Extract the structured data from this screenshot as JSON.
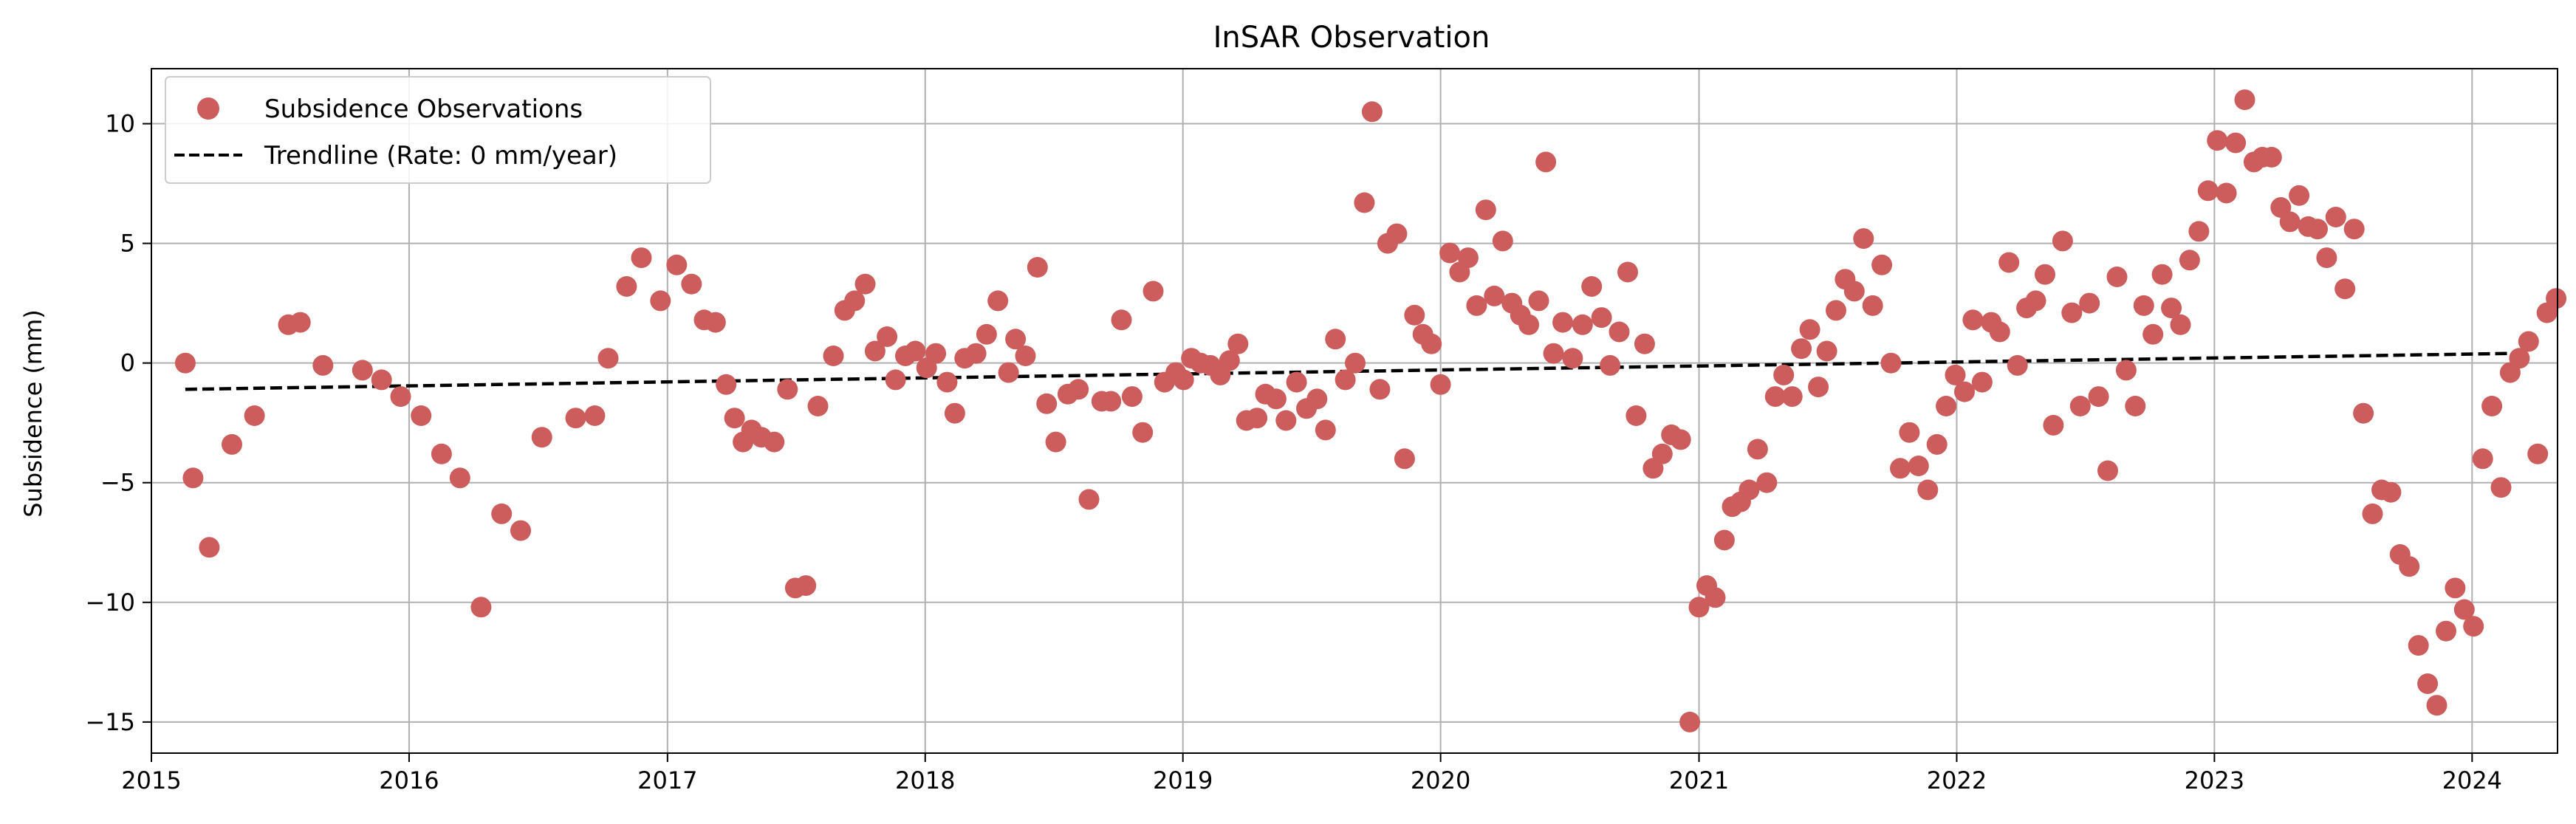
{
  "chart_data": {
    "type": "scatter",
    "title": "InSAR Observation",
    "xlabel": "",
    "ylabel": "Subsidence (mm)",
    "xlim": [
      "2015-01-01",
      "2024-05-01"
    ],
    "ylim": [
      -16.3,
      12.3
    ],
    "x_ticks": [
      "2015",
      "2016",
      "2017",
      "2018",
      "2019",
      "2020",
      "2021",
      "2022",
      "2023",
      "2024"
    ],
    "y_ticks": [
      10,
      5,
      0,
      -5,
      -10,
      -15
    ],
    "y_tick_labels": [
      "10",
      "5",
      "0",
      "−5",
      "−10",
      "−15"
    ],
    "grid": true,
    "legend_position": "top-left",
    "series": [
      {
        "name": "Subsidence Observations",
        "kind": "scatter",
        "color": "#cd5c5c",
        "points": [
          [
            "2015-02-18",
            0.0
          ],
          [
            "2015-03-01",
            -4.8
          ],
          [
            "2015-03-24",
            -7.7
          ],
          [
            "2015-04-25",
            -3.4
          ],
          [
            "2015-05-27",
            -2.2
          ],
          [
            "2015-07-14",
            1.6
          ],
          [
            "2015-07-31",
            1.7
          ],
          [
            "2015-09-01",
            -0.1
          ],
          [
            "2015-10-27",
            -0.3
          ],
          [
            "2015-11-23",
            -0.7
          ],
          [
            "2015-12-20",
            -1.4
          ],
          [
            "2016-01-18",
            -2.2
          ],
          [
            "2016-02-16",
            -3.8
          ],
          [
            "2016-03-13",
            -4.8
          ],
          [
            "2016-04-12",
            -10.2
          ],
          [
            "2016-05-11",
            -6.3
          ],
          [
            "2016-06-07",
            -7.0
          ],
          [
            "2016-07-07",
            -3.1
          ],
          [
            "2016-08-24",
            -2.3
          ],
          [
            "2016-09-20",
            -2.2
          ],
          [
            "2016-10-09",
            0.2
          ],
          [
            "2016-11-04",
            3.2
          ],
          [
            "2016-11-25",
            4.4
          ],
          [
            "2016-12-22",
            2.6
          ],
          [
            "2017-01-14",
            4.1
          ],
          [
            "2017-02-04",
            3.3
          ],
          [
            "2017-02-22",
            1.8
          ],
          [
            "2017-03-10",
            1.7
          ],
          [
            "2017-03-25",
            -0.9
          ],
          [
            "2017-04-06",
            -2.3
          ],
          [
            "2017-04-18",
            -3.3
          ],
          [
            "2017-04-30",
            -2.8
          ],
          [
            "2017-05-14",
            -3.1
          ],
          [
            "2017-06-01",
            -3.3
          ],
          [
            "2017-06-20",
            -1.1
          ],
          [
            "2017-07-01",
            -9.4
          ],
          [
            "2017-07-16",
            -9.3
          ],
          [
            "2017-08-02",
            -1.8
          ],
          [
            "2017-08-24",
            0.3
          ],
          [
            "2017-09-09",
            2.2
          ],
          [
            "2017-09-23",
            2.6
          ],
          [
            "2017-10-08",
            3.3
          ],
          [
            "2017-10-22",
            0.5
          ],
          [
            "2017-11-08",
            1.1
          ],
          [
            "2017-11-20",
            -0.7
          ],
          [
            "2017-12-04",
            0.3
          ],
          [
            "2017-12-18",
            0.5
          ],
          [
            "2018-01-03",
            -0.2
          ],
          [
            "2018-01-16",
            0.4
          ],
          [
            "2018-02-01",
            -0.8
          ],
          [
            "2018-02-12",
            -2.1
          ],
          [
            "2018-02-26",
            0.2
          ],
          [
            "2018-03-14",
            0.4
          ],
          [
            "2018-03-29",
            1.2
          ],
          [
            "2018-04-14",
            2.6
          ],
          [
            "2018-04-29",
            -0.4
          ],
          [
            "2018-05-09",
            1.0
          ],
          [
            "2018-05-23",
            0.3
          ],
          [
            "2018-06-09",
            4.0
          ],
          [
            "2018-06-22",
            -1.7
          ],
          [
            "2018-07-05",
            -3.3
          ],
          [
            "2018-07-22",
            -1.3
          ],
          [
            "2018-08-06",
            -1.1
          ],
          [
            "2018-08-21",
            -5.7
          ],
          [
            "2018-09-08",
            -1.6
          ],
          [
            "2018-09-21",
            -1.6
          ],
          [
            "2018-10-06",
            1.8
          ],
          [
            "2018-10-21",
            -1.4
          ],
          [
            "2018-11-05",
            -2.9
          ],
          [
            "2018-11-20",
            3.0
          ],
          [
            "2018-12-06",
            -0.8
          ],
          [
            "2018-12-22",
            -0.4
          ],
          [
            "2019-01-02",
            -0.7
          ],
          [
            "2019-01-13",
            0.2
          ],
          [
            "2019-01-26",
            0.0
          ],
          [
            "2019-02-09",
            -0.1
          ],
          [
            "2019-02-23",
            -0.5
          ],
          [
            "2019-03-08",
            0.1
          ],
          [
            "2019-03-20",
            0.8
          ],
          [
            "2019-04-01",
            -2.4
          ],
          [
            "2019-04-16",
            -2.3
          ],
          [
            "2019-04-28",
            -1.3
          ],
          [
            "2019-05-13",
            -1.5
          ],
          [
            "2019-05-27",
            -2.4
          ],
          [
            "2019-06-11",
            -0.8
          ],
          [
            "2019-06-25",
            -1.9
          ],
          [
            "2019-07-10",
            -1.5
          ],
          [
            "2019-07-22",
            -2.8
          ],
          [
            "2019-08-05",
            1.0
          ],
          [
            "2019-08-19",
            -0.7
          ],
          [
            "2019-09-02",
            0.0
          ],
          [
            "2019-09-15",
            6.7
          ],
          [
            "2019-09-26",
            10.5
          ],
          [
            "2019-10-07",
            -1.1
          ],
          [
            "2019-10-18",
            5.0
          ],
          [
            "2019-10-31",
            5.4
          ],
          [
            "2019-11-11",
            -4.0
          ],
          [
            "2019-11-25",
            2.0
          ],
          [
            "2019-12-07",
            1.2
          ],
          [
            "2019-12-19",
            0.8
          ],
          [
            "2020-01-01",
            -0.9
          ],
          [
            "2020-01-14",
            4.6
          ],
          [
            "2020-01-28",
            3.8
          ],
          [
            "2020-02-09",
            4.4
          ],
          [
            "2020-02-21",
            2.4
          ],
          [
            "2020-03-05",
            6.4
          ],
          [
            "2020-03-17",
            2.8
          ],
          [
            "2020-03-29",
            5.1
          ],
          [
            "2020-04-11",
            2.5
          ],
          [
            "2020-04-23",
            2.0
          ],
          [
            "2020-05-05",
            1.6
          ],
          [
            "2020-05-19",
            2.6
          ],
          [
            "2020-05-29",
            8.4
          ],
          [
            "2020-06-09",
            0.4
          ],
          [
            "2020-06-22",
            1.7
          ],
          [
            "2020-07-06",
            0.2
          ],
          [
            "2020-07-20",
            1.6
          ],
          [
            "2020-08-02",
            3.2
          ],
          [
            "2020-08-16",
            1.9
          ],
          [
            "2020-08-28",
            -0.1
          ],
          [
            "2020-09-10",
            1.3
          ],
          [
            "2020-09-22",
            3.8
          ],
          [
            "2020-10-04",
            -2.2
          ],
          [
            "2020-10-16",
            0.8
          ],
          [
            "2020-10-28",
            -4.4
          ],
          [
            "2020-11-10",
            -3.8
          ],
          [
            "2020-11-23",
            -3.0
          ],
          [
            "2020-12-06",
            -3.2
          ],
          [
            "2020-12-19",
            -15.0
          ],
          [
            "2021-01-01",
            -10.2
          ],
          [
            "2021-01-12",
            -9.3
          ],
          [
            "2021-01-24",
            -9.8
          ],
          [
            "2021-02-06",
            -7.4
          ],
          [
            "2021-02-17",
            -6.0
          ],
          [
            "2021-03-01",
            -5.8
          ],
          [
            "2021-03-13",
            -5.3
          ],
          [
            "2021-03-25",
            -3.6
          ],
          [
            "2021-04-07",
            -5.0
          ],
          [
            "2021-04-19",
            -1.4
          ],
          [
            "2021-05-01",
            -0.5
          ],
          [
            "2021-05-13",
            -1.4
          ],
          [
            "2021-05-26",
            0.6
          ],
          [
            "2021-06-07",
            1.4
          ],
          [
            "2021-06-19",
            -1.0
          ],
          [
            "2021-07-01",
            0.5
          ],
          [
            "2021-07-14",
            2.2
          ],
          [
            "2021-07-27",
            3.5
          ],
          [
            "2021-08-09",
            3.0
          ],
          [
            "2021-08-22",
            5.2
          ],
          [
            "2021-09-04",
            2.4
          ],
          [
            "2021-09-17",
            4.1
          ],
          [
            "2021-09-30",
            0.0
          ],
          [
            "2021-10-13",
            -4.4
          ],
          [
            "2021-10-26",
            -2.9
          ],
          [
            "2021-11-08",
            -4.3
          ],
          [
            "2021-11-21",
            -5.3
          ],
          [
            "2021-12-04",
            -3.4
          ],
          [
            "2021-12-17",
            -1.8
          ],
          [
            "2021-12-30",
            -0.5
          ],
          [
            "2022-01-12",
            -1.2
          ],
          [
            "2022-01-24",
            1.8
          ],
          [
            "2022-02-06",
            -0.8
          ],
          [
            "2022-02-19",
            1.7
          ],
          [
            "2022-03-03",
            1.3
          ],
          [
            "2022-03-16",
            4.2
          ],
          [
            "2022-03-28",
            -0.1
          ],
          [
            "2022-04-10",
            2.3
          ],
          [
            "2022-04-23",
            2.6
          ],
          [
            "2022-05-06",
            3.7
          ],
          [
            "2022-05-18",
            -2.6
          ],
          [
            "2022-05-31",
            5.1
          ],
          [
            "2022-06-13",
            2.1
          ],
          [
            "2022-06-25",
            -1.8
          ],
          [
            "2022-07-08",
            2.5
          ],
          [
            "2022-07-21",
            -1.4
          ],
          [
            "2022-08-03",
            -4.5
          ],
          [
            "2022-08-16",
            3.6
          ],
          [
            "2022-08-29",
            -0.3
          ],
          [
            "2022-09-11",
            -1.8
          ],
          [
            "2022-09-23",
            2.4
          ],
          [
            "2022-10-06",
            1.2
          ],
          [
            "2022-10-19",
            3.7
          ],
          [
            "2022-11-01",
            2.3
          ],
          [
            "2022-11-14",
            1.6
          ],
          [
            "2022-11-27",
            4.3
          ],
          [
            "2022-12-10",
            5.5
          ],
          [
            "2022-12-23",
            7.2
          ],
          [
            "2023-01-05",
            9.3
          ],
          [
            "2023-01-18",
            7.1
          ],
          [
            "2023-01-31",
            9.2
          ],
          [
            "2023-02-13",
            11.0
          ],
          [
            "2023-02-26",
            8.4
          ],
          [
            "2023-03-10",
            8.6
          ],
          [
            "2023-03-23",
            8.6
          ],
          [
            "2023-04-05",
            6.5
          ],
          [
            "2023-04-18",
            5.9
          ],
          [
            "2023-05-01",
            7.0
          ],
          [
            "2023-05-14",
            5.7
          ],
          [
            "2023-05-27",
            5.6
          ],
          [
            "2023-06-09",
            4.4
          ],
          [
            "2023-06-22",
            6.1
          ],
          [
            "2023-07-05",
            3.1
          ],
          [
            "2023-07-18",
            5.6
          ],
          [
            "2023-07-31",
            -2.1
          ],
          [
            "2023-08-13",
            -6.3
          ],
          [
            "2023-08-26",
            -5.3
          ],
          [
            "2023-09-08",
            -5.4
          ],
          [
            "2023-09-21",
            -8.0
          ],
          [
            "2023-10-04",
            -8.5
          ],
          [
            "2023-10-17",
            -11.8
          ],
          [
            "2023-10-30",
            -13.4
          ],
          [
            "2023-11-12",
            -14.3
          ],
          [
            "2023-11-25",
            -11.2
          ],
          [
            "2023-12-08",
            -9.4
          ],
          [
            "2023-12-21",
            -10.3
          ],
          [
            "2024-01-03",
            -11.0
          ],
          [
            "2024-01-16",
            -4.0
          ],
          [
            "2024-01-29",
            -1.8
          ],
          [
            "2024-02-11",
            -5.2
          ],
          [
            "2024-02-24",
            -0.4
          ],
          [
            "2024-03-08",
            0.2
          ],
          [
            "2024-03-21",
            0.9
          ],
          [
            "2024-04-03",
            -3.8
          ],
          [
            "2024-04-16",
            2.1
          ],
          [
            "2024-04-29",
            2.7
          ]
        ]
      },
      {
        "name": "Trendline (Rate: 0 mm/year)",
        "kind": "line",
        "style": "dashed",
        "color": "#000000",
        "points": [
          [
            "2015-02-18",
            -1.1
          ],
          [
            "2024-02-24",
            0.4
          ]
        ]
      }
    ]
  }
}
